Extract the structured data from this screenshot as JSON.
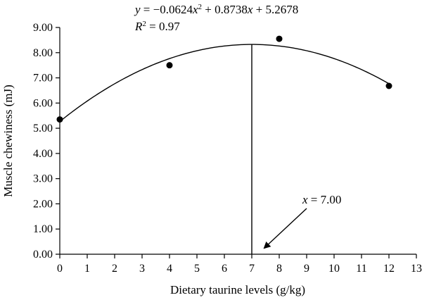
{
  "chart_data": {
    "type": "scatter",
    "title": "",
    "xlabel": "Dietary taurine levels (g/kg)",
    "ylabel": "Muscle chewiness (mJ)",
    "xlim": [
      0,
      13
    ],
    "ylim": [
      0,
      9
    ],
    "x_ticks": [
      "0",
      "1",
      "2",
      "3",
      "4",
      "5",
      "6",
      "7",
      "8",
      "9",
      "10",
      "11",
      "12",
      "13"
    ],
    "y_ticks": [
      "0.00",
      "1.00",
      "2.00",
      "3.00",
      "4.00",
      "5.00",
      "6.00",
      "7.00",
      "8.00",
      "9.00"
    ],
    "grid": false,
    "points": [
      {
        "x": 0,
        "y": 5.35
      },
      {
        "x": 4,
        "y": 7.5
      },
      {
        "x": 8,
        "y": 8.55
      },
      {
        "x": 12,
        "y": 6.68
      }
    ],
    "fit": {
      "type": "quadratic",
      "a": -0.0624,
      "b": 0.8738,
      "c": 5.2678,
      "x_range": [
        0,
        12
      ]
    },
    "equation_label": {
      "y_part": "y",
      "eq_part": " = −0.0624",
      "x1": "x",
      "sup": "2",
      "rest": " + 0.8738",
      "x2": "x",
      "tail": " + 5.2678"
    },
    "r2_label": {
      "r": "R",
      "sup": "2",
      "rest": " = 0.97"
    },
    "optimum": {
      "x": 7.0,
      "label_var": "x",
      "label_rest": " = 7.00"
    }
  }
}
